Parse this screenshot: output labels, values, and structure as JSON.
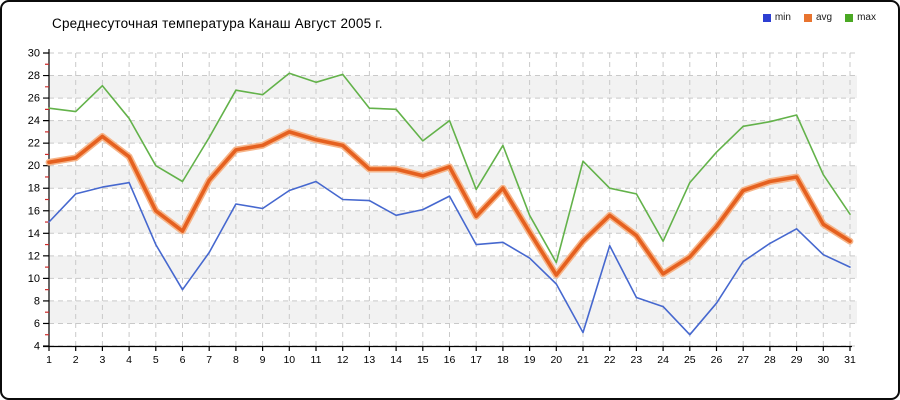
{
  "title": "Среднесуточная температура Канаш  Август 2005 г.",
  "legend": {
    "items": [
      {
        "label": "min",
        "color": "#2d3fd2"
      },
      {
        "label": "avg",
        "color": "#e8742f"
      },
      {
        "label": "max",
        "color": "#4aa823"
      }
    ]
  },
  "chart_data": {
    "type": "line",
    "title": "Среднесуточная температура Канаш  Август 2005 г.",
    "xlabel": "",
    "ylabel": "",
    "x": [
      1,
      2,
      3,
      4,
      5,
      6,
      7,
      8,
      9,
      10,
      11,
      12,
      13,
      14,
      15,
      16,
      17,
      18,
      19,
      20,
      21,
      22,
      23,
      24,
      25,
      26,
      27,
      28,
      29,
      30,
      31
    ],
    "ylim": [
      4,
      30
    ],
    "yticks": [
      30,
      28,
      26,
      24,
      22,
      20,
      18,
      16,
      14,
      12,
      10,
      8,
      6,
      4
    ],
    "grid": true,
    "legend_position": "top-right",
    "series": [
      {
        "name": "min",
        "color": "#4668cf",
        "width": 1.6,
        "values": [
          15.0,
          17.5,
          18.1,
          18.5,
          13.0,
          9.0,
          12.3,
          16.6,
          16.2,
          17.8,
          18.6,
          17.0,
          16.9,
          15.6,
          16.1,
          17.3,
          13.0,
          13.2,
          11.8,
          9.5,
          5.2,
          12.9,
          8.3,
          7.5,
          5.0,
          7.8,
          11.5,
          13.1,
          14.4,
          12.1,
          11.0
        ]
      },
      {
        "name": "avg",
        "color": "#e5601f",
        "halo": "#f6b488",
        "width": 3.6,
        "values": [
          20.3,
          20.7,
          22.6,
          20.8,
          16.0,
          14.2,
          18.7,
          21.4,
          21.8,
          23.0,
          22.3,
          21.8,
          19.7,
          19.7,
          19.1,
          19.9,
          15.5,
          18.0,
          14.1,
          10.3,
          13.3,
          15.6,
          13.8,
          10.4,
          11.9,
          14.6,
          17.8,
          18.6,
          19.0,
          14.8,
          13.3
        ]
      },
      {
        "name": "max",
        "color": "#63b24a",
        "width": 1.6,
        "values": [
          25.1,
          24.8,
          27.1,
          24.2,
          20.0,
          18.6,
          22.5,
          26.7,
          26.3,
          28.2,
          27.4,
          28.1,
          25.1,
          25.0,
          22.2,
          24.0,
          17.9,
          21.8,
          15.6,
          11.4,
          20.4,
          18.0,
          17.5,
          13.3,
          18.5,
          21.2,
          23.5,
          23.9,
          24.5,
          19.2,
          15.7
        ]
      }
    ],
    "style": {
      "band_color": "#f2f2f2",
      "grid_color": "#c9c9c9",
      "axis_color": "#000000",
      "minor_tick_color": "#cc2a2a",
      "band_tops": [
        28,
        24,
        20,
        16,
        12,
        8
      ]
    }
  }
}
